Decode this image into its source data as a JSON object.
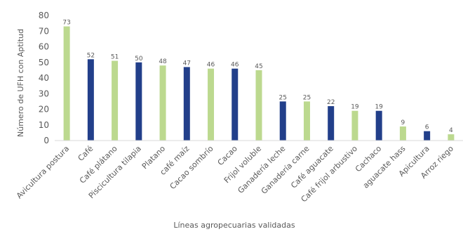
{
  "chart_data": {
    "type": "bar",
    "title": "",
    "xlabel": "Líneas agropecuarias validadas",
    "ylabel": "Número de UFH con Aptitud",
    "ylim": [
      0,
      80
    ],
    "yticks": [
      0,
      10,
      20,
      30,
      40,
      50,
      60,
      70,
      80
    ],
    "grid": false,
    "legend": "none",
    "categories": [
      "Avicultura postura",
      "Café",
      "Café plátano",
      "Piscicultura tilapia",
      "Platano",
      "café maíz",
      "Cacao sombrío",
      "Cacao",
      "Frijol voluble",
      "Ganadería leche",
      "Ganadería carne",
      "Café aguacate",
      "Café frijol arbustivo",
      "Cachaco",
      "aguacate hass",
      "Apicultura",
      "Arroz riego"
    ],
    "values": [
      73,
      52,
      51,
      50,
      48,
      47,
      46,
      46,
      45,
      25,
      25,
      22,
      19,
      19,
      9,
      6,
      4
    ],
    "bar_colors": [
      "#bcd98f",
      "#223f8a",
      "#bcd98f",
      "#223f8a",
      "#bcd98f",
      "#223f8a",
      "#bcd98f",
      "#223f8a",
      "#bcd98f",
      "#223f8a",
      "#bcd98f",
      "#223f8a",
      "#bcd98f",
      "#223f8a",
      "#bcd98f",
      "#223f8a",
      "#bcd98f"
    ]
  }
}
